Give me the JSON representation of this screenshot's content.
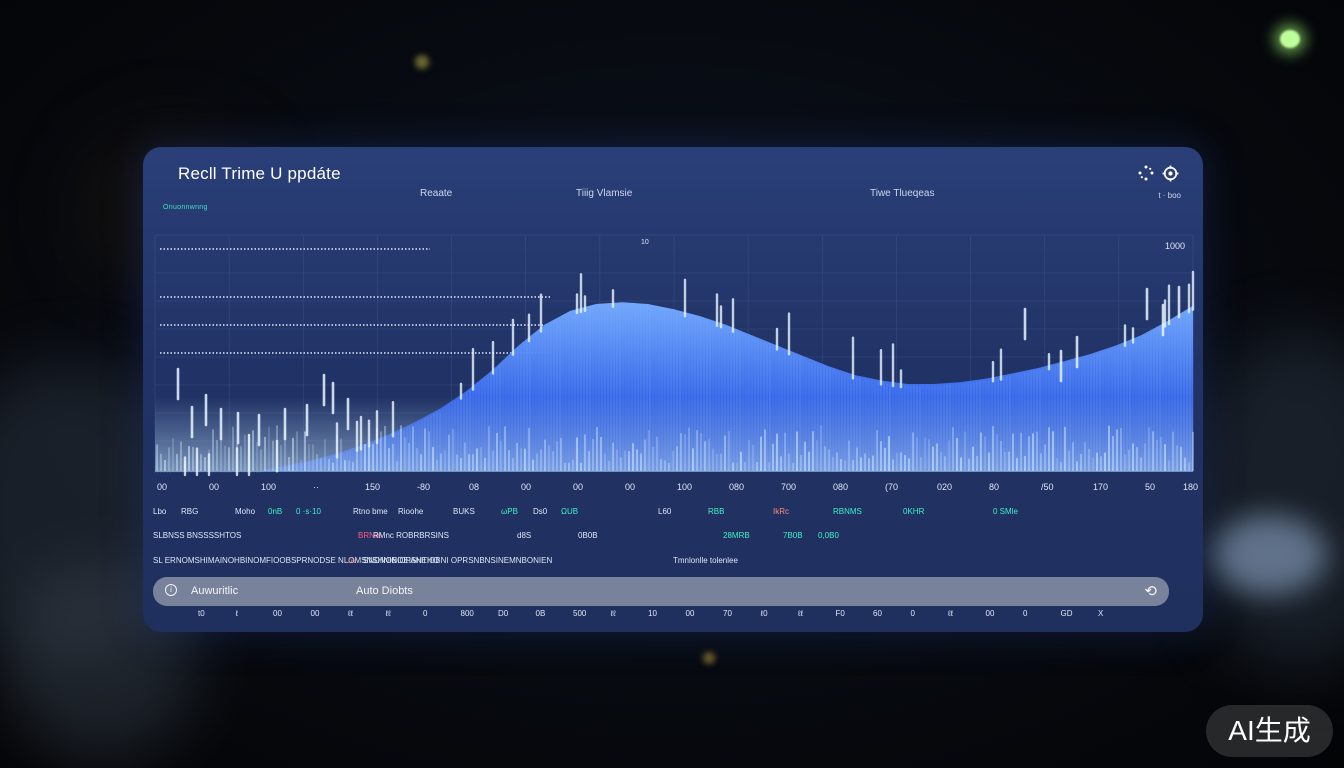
{
  "window": {
    "title": "Recll Trime U ppdáte",
    "subtitle": "Onuonnwnng",
    "header_labels": [
      "Reaate",
      "Tiiig Vlamsie",
      "Tiwe Tlueqeas"
    ],
    "header_right": "t · boo",
    "icons": [
      "loading-icon",
      "settings-gear-icon"
    ]
  },
  "chart_data": {
    "type": "area",
    "x": [
      0,
      1,
      2,
      3,
      4,
      5,
      6,
      7,
      8,
      9,
      10,
      11,
      12,
      13,
      14,
      15,
      16,
      17,
      18,
      19,
      20,
      21,
      22,
      23,
      24,
      25,
      26,
      27,
      28,
      29,
      30,
      31,
      32,
      33,
      34,
      35,
      36,
      37,
      38,
      39,
      40
    ],
    "values": [
      0,
      0,
      0,
      0,
      0,
      3,
      6,
      10,
      15,
      21,
      28,
      36,
      46,
      58,
      72,
      84,
      92,
      96,
      97,
      96,
      93,
      89,
      84,
      78,
      72,
      66,
      60,
      55,
      52,
      50,
      50,
      51,
      53,
      56,
      59,
      63,
      67,
      72,
      78,
      86,
      95
    ],
    "ylim": [
      0,
      100
    ],
    "y_tick_top": "1000",
    "y_tick_mid": "10",
    "x_tick_labels": [
      "00",
      "00",
      "100",
      "··",
      "150",
      "-80",
      "08",
      "00",
      "00",
      "00",
      "100",
      "080",
      "700",
      "080",
      "(70",
      "020",
      "80",
      "/50",
      "170",
      "50",
      "180"
    ],
    "colors": {
      "fill_top": "#6fa8ff",
      "fill_bottom": "#1d46c8",
      "spike": "#d8f0ff",
      "grid": "#5d74b0"
    }
  },
  "status_rows": [
    {
      "items": [
        {
          "t": "Lbo",
          "c": "#dfe6f7"
        },
        {
          "t": "RBG",
          "c": "#dfe6f7"
        },
        {
          "t": "Moho",
          "c": "#dfe6f7"
        },
        {
          "t": "0nB",
          "c": "#40f0c8"
        },
        {
          "t": "0 ·s·10",
          "c": "#40f0c8"
        },
        {
          "t": "Rtno bme",
          "c": "#dfe6f7"
        },
        {
          "t": "Rioohe",
          "c": "#dfe6f7"
        },
        {
          "t": "BUKS",
          "c": "#dfe6f7"
        },
        {
          "t": "ωPB",
          "c": "#40f0c8"
        },
        {
          "t": "Ds0",
          "c": "#dfe6f7"
        },
        {
          "t": "ΩUB",
          "c": "#40f0c8"
        },
        {
          "t": "L60",
          "c": "#dfe6f7"
        },
        {
          "t": "RBB",
          "c": "#40f0c8"
        },
        {
          "t": "IkRc",
          "c": "#ff8c7a"
        },
        {
          "t": "RBNMS",
          "c": "#40f0c8"
        },
        {
          "t": "0KHR",
          "c": "#40f0c8"
        },
        {
          "t": "0 SMle",
          "c": "#40f0c8"
        }
      ]
    },
    {
      "items": [
        {
          "t": "SLBNSS BNSSSSHTOS",
          "c": "#dfe6f7"
        },
        {
          "t": "BRNIe",
          "c": "#ff5a7a"
        },
        {
          "t": "RMnc ROBRBRSINS",
          "c": "#dfe6f7"
        },
        {
          "t": "d8S",
          "c": "#dfe6f7"
        },
        {
          "t": "0B0B",
          "c": "#dfe6f7"
        },
        {
          "t": "28MRB",
          "c": "#40f0c8"
        },
        {
          "t": "7B0B",
          "c": "#40f0c8"
        },
        {
          "t": "0,0B0",
          "c": "#40f0c8"
        }
      ]
    },
    {
      "items": [
        {
          "t": "SL ERNOMSHIMAINOHBINOMFIOOBSPRNODSE NLOMSNSHNINOEISHTHO",
          "c": "#dfe6f7"
        },
        {
          "t": "ra",
          "c": "#ff8c7a"
        },
        {
          "t": "SNDNOBIOPANEIOBNI OPRSNBNSINEMNBONIEN",
          "c": "#dfe6f7"
        },
        {
          "t": "Tmnlonlle tolenlee",
          "c": "#dfe6f7"
        }
      ]
    }
  ],
  "command_bar": {
    "label_left": "Auwuritlic",
    "label_right": "Auto Diobts"
  },
  "bottom_ticks": [
    "t0",
    "ℓ",
    "00",
    "00",
    "ℓℓ",
    "ℓℓ",
    "0",
    "800",
    "D0",
    "0B",
    "500",
    "ℓℓ",
    "10",
    "00",
    "70",
    "ℓ0",
    "ℓℓ",
    "F0",
    "60",
    "0",
    "ℓℓ",
    "00",
    "0",
    "GD",
    "X"
  ],
  "watermark": "AI生成"
}
